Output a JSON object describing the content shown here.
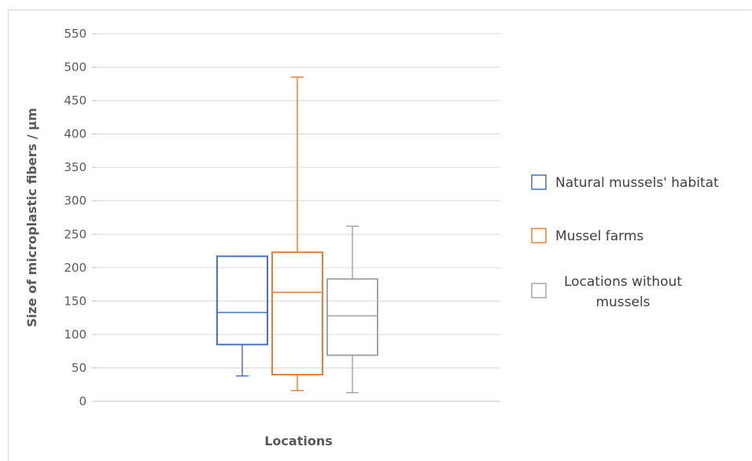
{
  "chart_data": {
    "type": "boxplot",
    "xlabel": "Locations",
    "ylabel": "Size of microplastic fibers / μm",
    "ylim": [
      0,
      550
    ],
    "yticks": [
      0,
      50,
      100,
      150,
      200,
      250,
      300,
      350,
      400,
      450,
      500,
      550
    ],
    "grid": true,
    "legend_position": "right",
    "series": [
      {
        "name": "Natural mussels' habitat",
        "legend_lines": [
          "Natural mussels' habitat"
        ],
        "color": "#4472C4",
        "min": 38,
        "q1": 85,
        "median": 133,
        "q3": 217,
        "max": 217
      },
      {
        "name": "Mussel farms",
        "legend_lines": [
          "Mussel farms"
        ],
        "color": "#ED7D31",
        "min": 16,
        "q1": 40,
        "median": 163,
        "q3": 223,
        "max": 485
      },
      {
        "name": "Locations without mussels",
        "legend_lines": [
          "Locations without",
          "mussels"
        ],
        "color": "#A5A5A5",
        "min": 13,
        "q1": 69,
        "median": 128,
        "q3": 183,
        "max": 262
      }
    ]
  }
}
